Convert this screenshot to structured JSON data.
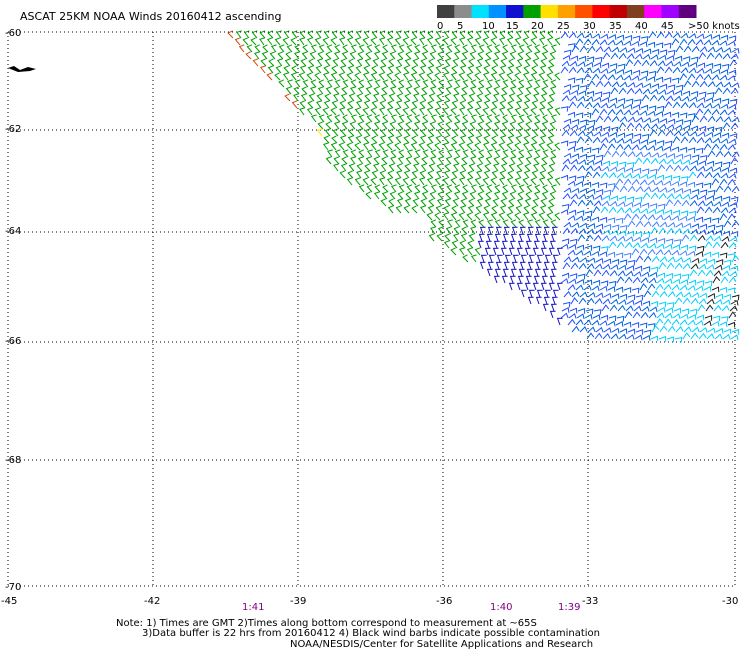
{
  "title": "ASCAT 25KM NOAA Winds 20160412 ascending",
  "legend": {
    "labels": [
      "0",
      "5",
      "10",
      "15",
      "20",
      "25",
      "30",
      "35",
      "40",
      "45",
      ">50 knots"
    ],
    "colors": [
      "#404040",
      "#8c8c8c",
      "#00e0ff",
      "#0090ff",
      "#1010d0",
      "#00a000",
      "#ffe000",
      "#ffa000",
      "#ff5000",
      "#ff0000",
      "#c00000",
      "#804020",
      "#ff00ff",
      "#a000ff",
      "#600080"
    ]
  },
  "axes": {
    "lat_labels": [
      "-60",
      "-62",
      "-64",
      "-66",
      "-68",
      "-70"
    ],
    "lon_labels": [
      "-45",
      "-42",
      "-39",
      "-36",
      "-33",
      "-30"
    ]
  },
  "times": [
    {
      "label": "1:41"
    },
    {
      "label": "1:40"
    },
    {
      "label": "1:39"
    }
  ],
  "notes": [
    "Note: 1) Times are GMT 2)Times along bottom correspond to measurement at ~65S",
    "3)Data buffer is 22 hrs from 20160412 4) Black wind barbs indicate possible contamination",
    "NOAA/NESDIS/Center for Satellite Applications and Research"
  ]
}
